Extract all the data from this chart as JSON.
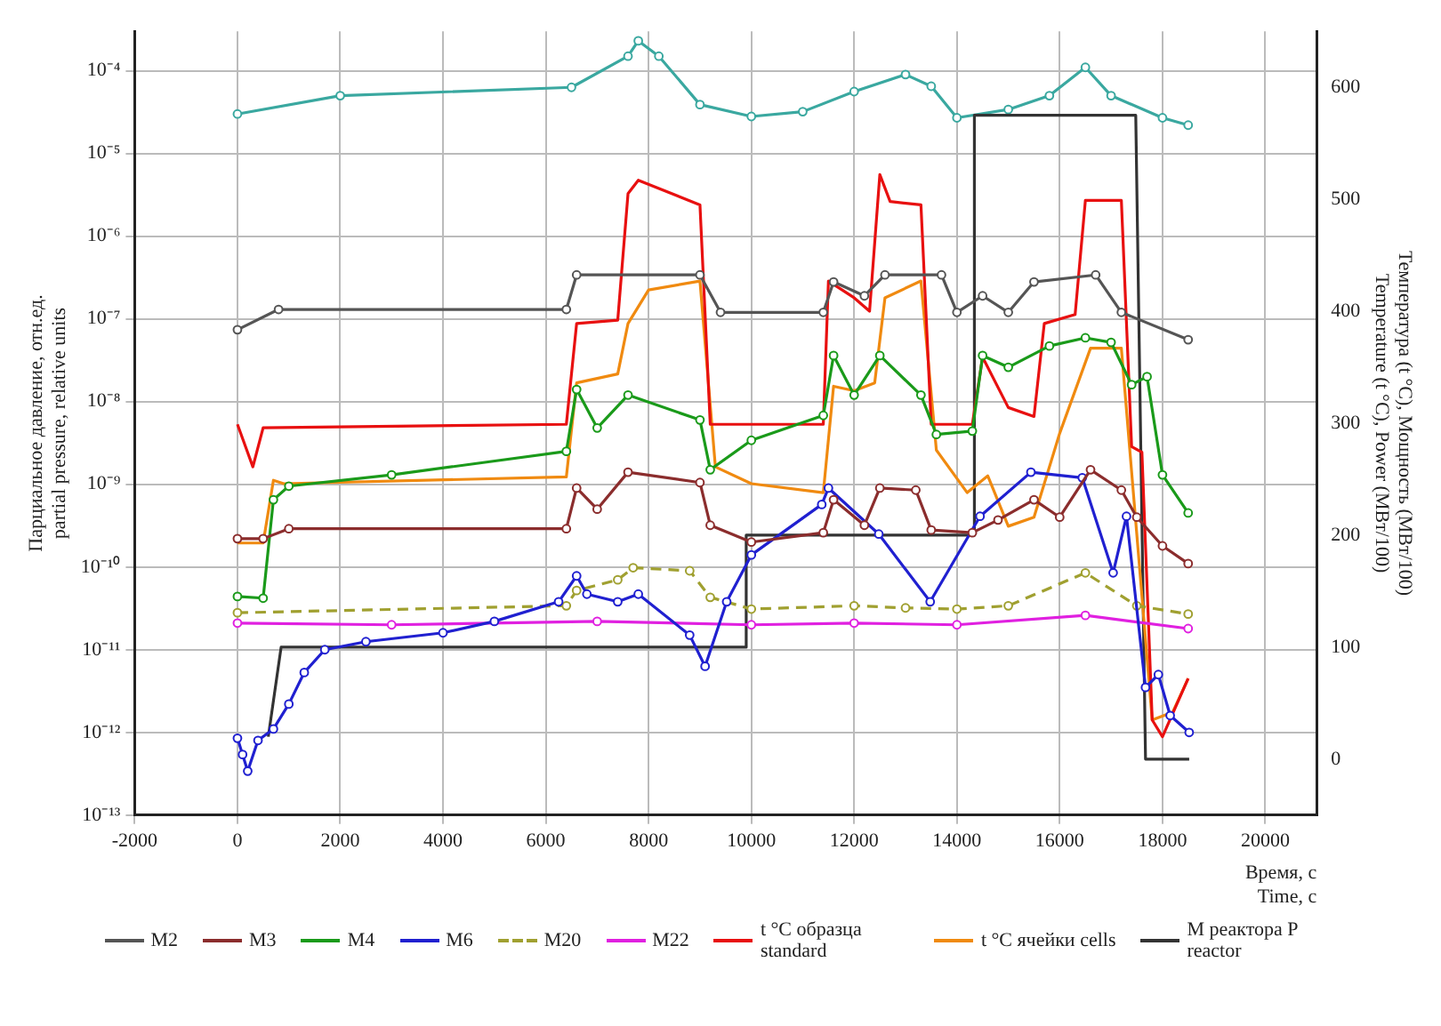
{
  "chart_data": {
    "type": "line",
    "xlabel": "Время, с\nTime, c",
    "ylabel": "Парциальное давление, отн.ед.\npartial pressure, relative units",
    "y2label": "Температура (t °C), Мощность (МВт/100)\nTemperature (t °C), Power (МВт/100)",
    "xlim": [
      -2000,
      21000
    ],
    "xticks": [
      -2000,
      0,
      2000,
      4000,
      6000,
      8000,
      10000,
      12000,
      14000,
      16000,
      18000,
      20000
    ],
    "ylim": [
      1e-13,
      0.0003
    ],
    "yticks": [
      {
        "value": 1e-13,
        "label": "10⁻¹³"
      },
      {
        "value": 1e-12,
        "label": "10⁻¹²"
      },
      {
        "value": 1e-11,
        "label": "10⁻¹¹"
      },
      {
        "value": 1e-10,
        "label": "10⁻¹⁰"
      },
      {
        "value": 1e-09,
        "label": "10⁻⁹"
      },
      {
        "value": 1e-08,
        "label": "10⁻⁸"
      },
      {
        "value": 1e-07,
        "label": "10⁻⁷"
      },
      {
        "value": 1e-06,
        "label": "10⁻⁶"
      },
      {
        "value": 1e-05,
        "label": "10⁻⁵"
      },
      {
        "value": 0.0001,
        "label": "10⁻⁴"
      }
    ],
    "log": "y",
    "y2lim": [
      -50,
      650
    ],
    "y2ticks": [
      0,
      100,
      200,
      300,
      400,
      500,
      600
    ],
    "grid": true,
    "legend": "bottom",
    "series": [
      {
        "name": "M2",
        "color": "#555555",
        "marker": "circle",
        "x": [
          0,
          800,
          6400,
          6600,
          9000,
          9400,
          11400,
          11600,
          12200,
          12600,
          13700,
          14000,
          14500,
          15000,
          15500,
          16700,
          17200,
          18500
        ],
        "values": [
          7.4e-08,
          1.3e-07,
          1.3e-07,
          3.4e-07,
          3.4e-07,
          1.2e-07,
          1.2e-07,
          2.8e-07,
          1.9e-07,
          3.4e-07,
          3.4e-07,
          1.2e-07,
          1.9e-07,
          1.2e-07,
          2.8e-07,
          3.4e-07,
          1.2e-07,
          5.6e-08
        ]
      },
      {
        "name": "M3",
        "color": "#8b2d2d",
        "marker": "circle",
        "x": [
          0,
          500,
          1000,
          6400,
          6600,
          7000,
          7600,
          9000,
          9200,
          10000,
          11400,
          11600,
          12200,
          12500,
          13200,
          13500,
          14300,
          14800,
          15500,
          16000,
          16600,
          17200,
          17500,
          18000,
          18500
        ],
        "values": [
          2.2e-10,
          2.2e-10,
          2.9e-10,
          2.9e-10,
          9e-10,
          5e-10,
          1.4e-09,
          1.05e-09,
          3.2e-10,
          2e-10,
          2.6e-10,
          6.5e-10,
          3.2e-10,
          9e-10,
          8.5e-10,
          2.8e-10,
          2.6e-10,
          3.7e-10,
          6.5e-10,
          4e-10,
          1.5e-09,
          8.5e-10,
          4e-10,
          1.8e-10,
          1.1e-10
        ]
      },
      {
        "name": "M4",
        "color": "#1a9a1a",
        "marker": "circle",
        "x": [
          0,
          500,
          700,
          1000,
          3000,
          6400,
          6600,
          7000,
          7600,
          9000,
          9200,
          10000,
          11400,
          11600,
          12000,
          12500,
          13300,
          13600,
          14300,
          14500,
          15000,
          15800,
          16500,
          17000,
          17400,
          17700,
          18000,
          18500
        ],
        "values": [
          4.4e-11,
          4.2e-11,
          6.5e-10,
          9.5e-10,
          1.3e-09,
          2.5e-09,
          1.4e-08,
          4.8e-09,
          1.2e-08,
          6e-09,
          1.5e-09,
          3.4e-09,
          6.8e-09,
          3.6e-08,
          1.2e-08,
          3.6e-08,
          1.2e-08,
          4e-09,
          4.4e-09,
          3.6e-08,
          2.6e-08,
          4.7e-08,
          5.9e-08,
          5.2e-08,
          1.6e-08,
          2e-08,
          1.3e-09,
          4.5e-10
        ]
      },
      {
        "name": "M6",
        "color": "#2020d0",
        "marker": "circle",
        "x": [
          0,
          100,
          200,
          400,
          700,
          1000,
          1300,
          1700,
          2500,
          4000,
          5000,
          6250,
          6600,
          6800,
          7400,
          7800,
          8800,
          9100,
          9520,
          10000,
          11370,
          11500,
          12480,
          13480,
          14450,
          15440,
          16440,
          17040,
          17300,
          17670,
          17920,
          18150,
          18520
        ],
        "values": [
          8.5e-13,
          5.4e-13,
          3.4e-13,
          8e-13,
          1.1e-12,
          2.2e-12,
          5.3e-12,
          1e-11,
          1.25e-11,
          1.6e-11,
          2.2e-11,
          3.8e-11,
          7.8e-11,
          4.7e-11,
          3.8e-11,
          4.7e-11,
          1.5e-11,
          6.3e-12,
          3.8e-11,
          1.4e-10,
          5.7e-10,
          9e-10,
          2.5e-10,
          3.8e-11,
          4.1e-10,
          1.4e-09,
          1.2e-09,
          8.5e-11,
          4.1e-10,
          3.5e-12,
          5e-12,
          1.6e-12,
          1e-12
        ]
      },
      {
        "name": "M20",
        "color": "#a0a030",
        "marker": "circle",
        "line_style": "dashed",
        "x": [
          0,
          6400,
          6600,
          7400,
          7700,
          8800,
          9200,
          10000,
          12000,
          13000,
          14000,
          15000,
          16500,
          17500,
          18500
        ],
        "values": [
          2.8e-11,
          3.4e-11,
          5.2e-11,
          7e-11,
          9.8e-11,
          9e-11,
          4.3e-11,
          3.1e-11,
          3.4e-11,
          3.2e-11,
          3.1e-11,
          3.4e-11,
          8.5e-11,
          3.4e-11,
          2.7e-11
        ]
      },
      {
        "name": "M22",
        "color": "#e020e0",
        "marker": "circle",
        "x": [
          0,
          3000,
          7000,
          10000,
          12000,
          14000,
          16500,
          18500
        ],
        "values": [
          2.1e-11,
          2e-11,
          2.2e-11,
          2e-11,
          2.1e-11,
          2e-11,
          2.6e-11,
          1.8e-11
        ]
      },
      {
        "name": "t °C образца standard",
        "color": "#e81010",
        "axis": "y2",
        "marker": "none",
        "x": [
          0,
          300,
          500,
          6400,
          6600,
          7400,
          7600,
          7800,
          9000,
          9200,
          11400,
          11500,
          12000,
          12300,
          12500,
          12700,
          13300,
          13500,
          14300,
          14500,
          15000,
          15500,
          15700,
          16300,
          16500,
          17200,
          17400,
          17600,
          17800,
          18000,
          18500
        ],
        "values": [
          299,
          261,
          296,
          299,
          389,
          392,
          505,
          517,
          495,
          299,
          299,
          427,
          412,
          400,
          522,
          498,
          495,
          299,
          299,
          359,
          314,
          306,
          389,
          397,
          499,
          499,
          279,
          274,
          35,
          20,
          72
        ]
      },
      {
        "name": "t °C ячейки cells",
        "color": "#f08a10",
        "axis": "y2",
        "marker": "none",
        "x": [
          0,
          500,
          700,
          900,
          6400,
          6600,
          7400,
          7600,
          8000,
          9000,
          9300,
          10000,
          11400,
          11600,
          12000,
          12400,
          12600,
          13300,
          13600,
          14200,
          14600,
          15000,
          15500,
          16000,
          16600,
          17200,
          17500,
          17800,
          18200,
          18500
        ],
        "values": [
          193,
          193,
          249,
          246,
          252,
          336,
          344,
          389,
          419,
          427,
          261,
          246,
          238,
          333,
          329,
          336,
          412,
          427,
          276,
          238,
          253,
          208,
          216,
          291,
          367,
          367,
          201,
          35,
          42,
          72
        ]
      },
      {
        "name": "М реактора P reactor",
        "color": "#333333",
        "axis": "y2",
        "marker": "none",
        "x": [
          600,
          850,
          9890,
          9900,
          14330,
          14340,
          17480,
          17670,
          18520
        ],
        "values": [
          20,
          100,
          100,
          200,
          200,
          575,
          575,
          0,
          0
        ]
      },
      {
        "color": "#3aa8a0",
        "marker": "circle",
        "x": [
          0,
          2000,
          6500,
          7600,
          7800,
          8200,
          9000,
          10000,
          11000,
          12000,
          13000,
          13500,
          14000,
          15000,
          15800,
          16500,
          17000,
          18000,
          18500
        ],
        "values": [
          3e-05,
          5e-05,
          6.3e-05,
          0.00015,
          0.00023,
          0.00015,
          3.9e-05,
          2.8e-05,
          3.2e-05,
          5.6e-05,
          9e-05,
          6.5e-05,
          2.7e-05,
          3.4e-05,
          5e-05,
          0.00011,
          5e-05,
          2.7e-05,
          2.2e-05
        ]
      }
    ]
  }
}
